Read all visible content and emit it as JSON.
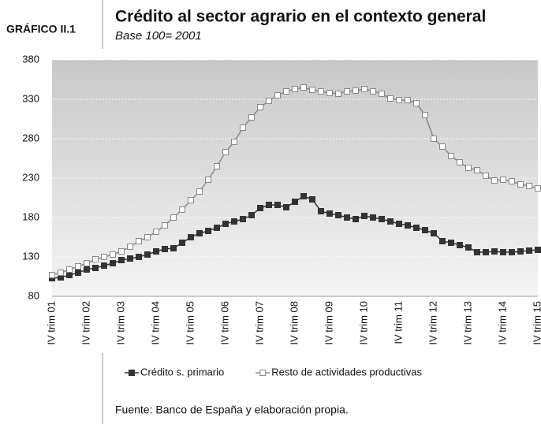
{
  "chart_data": {
    "type": "line",
    "label": "GRÁFICO II.1",
    "title": "Crédito al sector agrario en el contexto general",
    "subtitle": "Base 100= 2001",
    "source": "Fuente: Banco de España y elaboración propia.",
    "categories": [
      "IV trim 01",
      null,
      null,
      null,
      "IV trim 02",
      null,
      null,
      null,
      "IV trim 03",
      null,
      null,
      null,
      "IV trim 04",
      null,
      null,
      null,
      "IV trim 05",
      null,
      null,
      null,
      "IV trim 06",
      null,
      null,
      null,
      "IV trim 07",
      null,
      null,
      null,
      "IV trim 08",
      null,
      null,
      null,
      "IV trim 09",
      null,
      null,
      null,
      "IV trim 10",
      null,
      null,
      null,
      "IV trim 11",
      null,
      null,
      null,
      "IV trim 12",
      null,
      null,
      null,
      "IV trim 13",
      null,
      null,
      null,
      "IV trim 14",
      null,
      null,
      null,
      "IV trim 15"
    ],
    "series": [
      {
        "name": "Crédito s. primario",
        "color": "#333333",
        "marker_fill": "#333333",
        "values": [
          103,
          104,
          107,
          110,
          114,
          116,
          119,
          122,
          126,
          128,
          130,
          133,
          137,
          140,
          141,
          148,
          155,
          160,
          163,
          167,
          172,
          175,
          178,
          183,
          192,
          196,
          196,
          193,
          200,
          207,
          203,
          188,
          185,
          183,
          180,
          178,
          182,
          180,
          178,
          175,
          172,
          170,
          167,
          164,
          160,
          150,
          148,
          145,
          142,
          136,
          136,
          137,
          136,
          136,
          137,
          138,
          139
        ]
      },
      {
        "name": "Resto de actividades productivas",
        "color": "#888888",
        "marker_fill": "#ffffff",
        "values": [
          107,
          110,
          114,
          118,
          122,
          127,
          130,
          133,
          137,
          143,
          150,
          155,
          162,
          170,
          180,
          190,
          202,
          213,
          228,
          245,
          263,
          276,
          294,
          307,
          320,
          328,
          335,
          340,
          343,
          345,
          342,
          340,
          338,
          337,
          340,
          341,
          343,
          340,
          337,
          331,
          329,
          329,
          325,
          310,
          280,
          270,
          258,
          250,
          243,
          240,
          233,
          227,
          228,
          226,
          222,
          220,
          217
        ]
      }
    ],
    "ylim": [
      80,
      380
    ],
    "yticks": [
      80,
      130,
      180,
      230,
      280,
      330,
      380
    ],
    "grid": true,
    "legend": "bottom"
  }
}
